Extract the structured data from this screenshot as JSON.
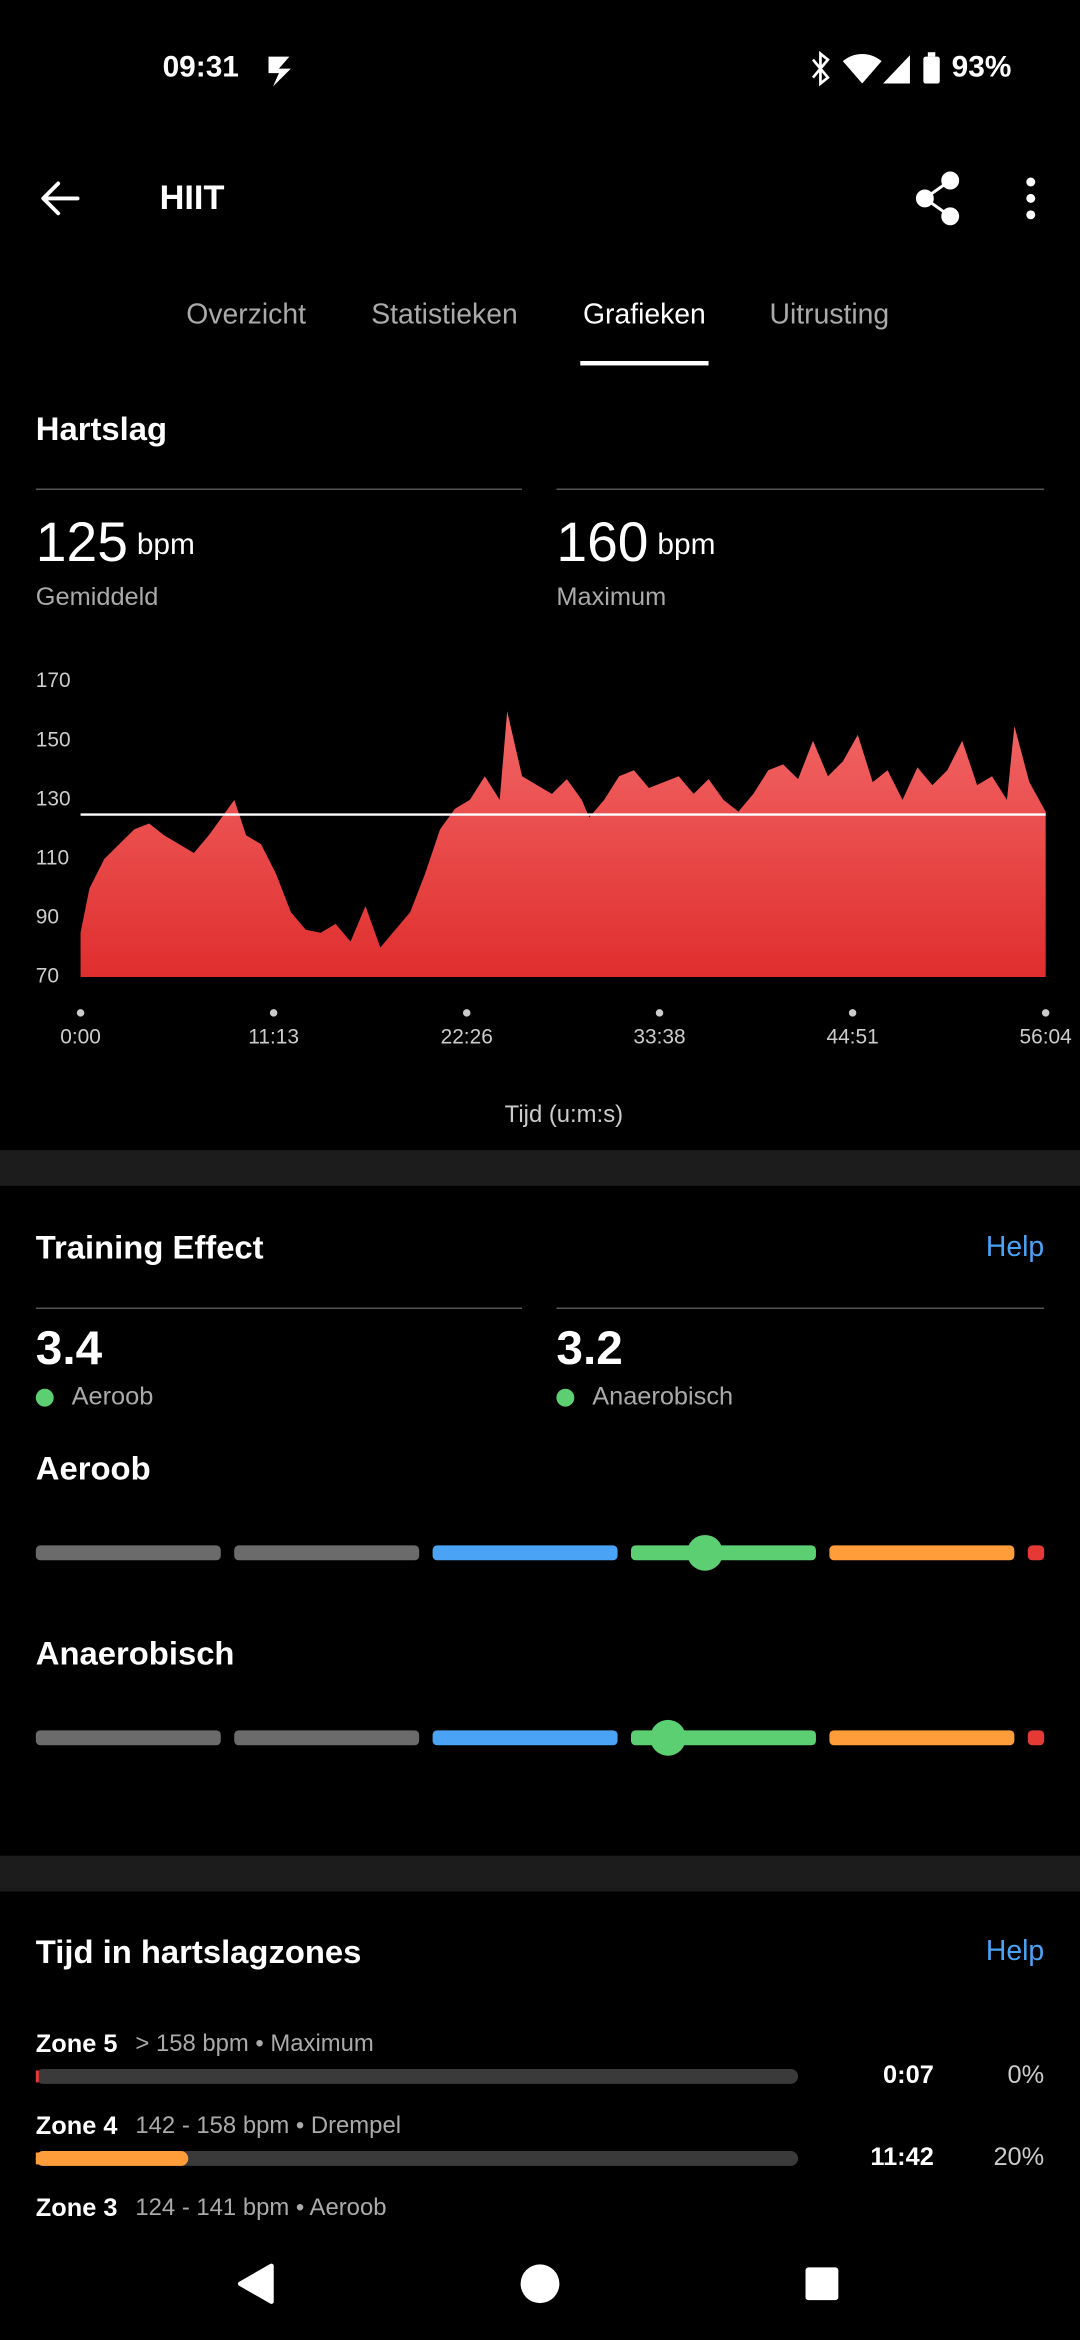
{
  "status_bar": {
    "time": "09:31",
    "battery": "93%"
  },
  "header": {
    "title": "HIIT"
  },
  "tabs": {
    "items": [
      "Overzicht",
      "Statistieken",
      "Grafieken",
      "Uitrusting"
    ],
    "active": 2
  },
  "heart_rate": {
    "title": "Hartslag",
    "average": {
      "value": 125,
      "unit": "bpm",
      "label": "Gemiddeld"
    },
    "maximum": {
      "value": 160,
      "unit": "bpm",
      "label": "Maximum"
    },
    "chart": {
      "type": "area",
      "x_label": "Tijd (u:m:s)",
      "color_top": "#f26666",
      "color_bottom": "#e02e2e",
      "line_color": "#ffffff",
      "xlim": [
        0,
        3364
      ],
      "ylim": [
        70,
        170
      ],
      "yticks": [
        70,
        90,
        110,
        130,
        150,
        170
      ],
      "xticks": [
        {
          "value": 0,
          "label": "0:00"
        },
        {
          "value": 673,
          "label": "11:13"
        },
        {
          "value": 1346,
          "label": "22:26"
        },
        {
          "value": 2018,
          "label": "33:38"
        },
        {
          "value": 2691,
          "label": "44:51"
        },
        {
          "value": 3364,
          "label": "56:04"
        }
      ],
      "x": [
        0,
        31,
        83,
        135,
        187,
        239,
        291,
        343,
        395,
        447,
        499,
        536,
        577,
        629,
        681,
        733,
        785,
        837,
        889,
        941,
        993,
        1045,
        1097,
        1149,
        1201,
        1253,
        1305,
        1357,
        1409,
        1461,
        1487,
        1539,
        1591,
        1643,
        1695,
        1747,
        1773,
        1825,
        1877,
        1929,
        1981,
        2033,
        2085,
        2137,
        2189,
        2241,
        2293,
        2345,
        2397,
        2449,
        2501,
        2553,
        2605,
        2657,
        2709,
        2761,
        2813,
        2865,
        2917,
        2969,
        3021,
        3073,
        3125,
        3177,
        3229,
        3255,
        3307,
        3364
      ],
      "values": [
        85,
        100,
        110,
        115,
        120,
        122,
        118,
        115,
        112,
        118,
        125,
        130,
        118,
        115,
        105,
        92,
        86,
        85,
        88,
        82,
        94,
        80,
        86,
        92,
        105,
        120,
        127,
        130,
        138,
        130,
        160,
        138,
        135,
        132,
        137,
        130,
        124,
        130,
        138,
        140,
        134,
        136,
        138,
        132,
        137,
        130,
        126,
        132,
        140,
        142,
        137,
        150,
        138,
        143,
        152,
        136,
        140,
        130,
        141,
        135,
        140,
        150,
        135,
        138,
        130,
        155,
        136,
        126
      ]
    }
  },
  "training_effect": {
    "title": "Training Effect",
    "help": "Help",
    "dot_color": "#5ccf72",
    "segment_colors": [
      "#6b6b6b",
      "#6b6b6b",
      "#4aa3f5",
      "#5ccf72",
      "#ff9d3b",
      "#e53935"
    ],
    "items": [
      {
        "value": 3.4,
        "label": "Aeroob"
      },
      {
        "value": 3.2,
        "label": "Anaerobisch"
      }
    ]
  },
  "zones": {
    "title": "Tijd in hartslagzones",
    "help": "Help",
    "items": [
      {
        "name": "Zone 5",
        "range": "> 158 bpm • Maximum",
        "time": "0:07",
        "percent": 0,
        "percent_label": "0%",
        "color": "#e53935"
      },
      {
        "name": "Zone 4",
        "range": "142 - 158 bpm • Drempel",
        "time": "11:42",
        "percent": 20,
        "percent_label": "20%",
        "color": "#ff9d3b"
      },
      {
        "name": "Zone 3",
        "range": "124 - 141 bpm • Aeroob"
      }
    ]
  }
}
